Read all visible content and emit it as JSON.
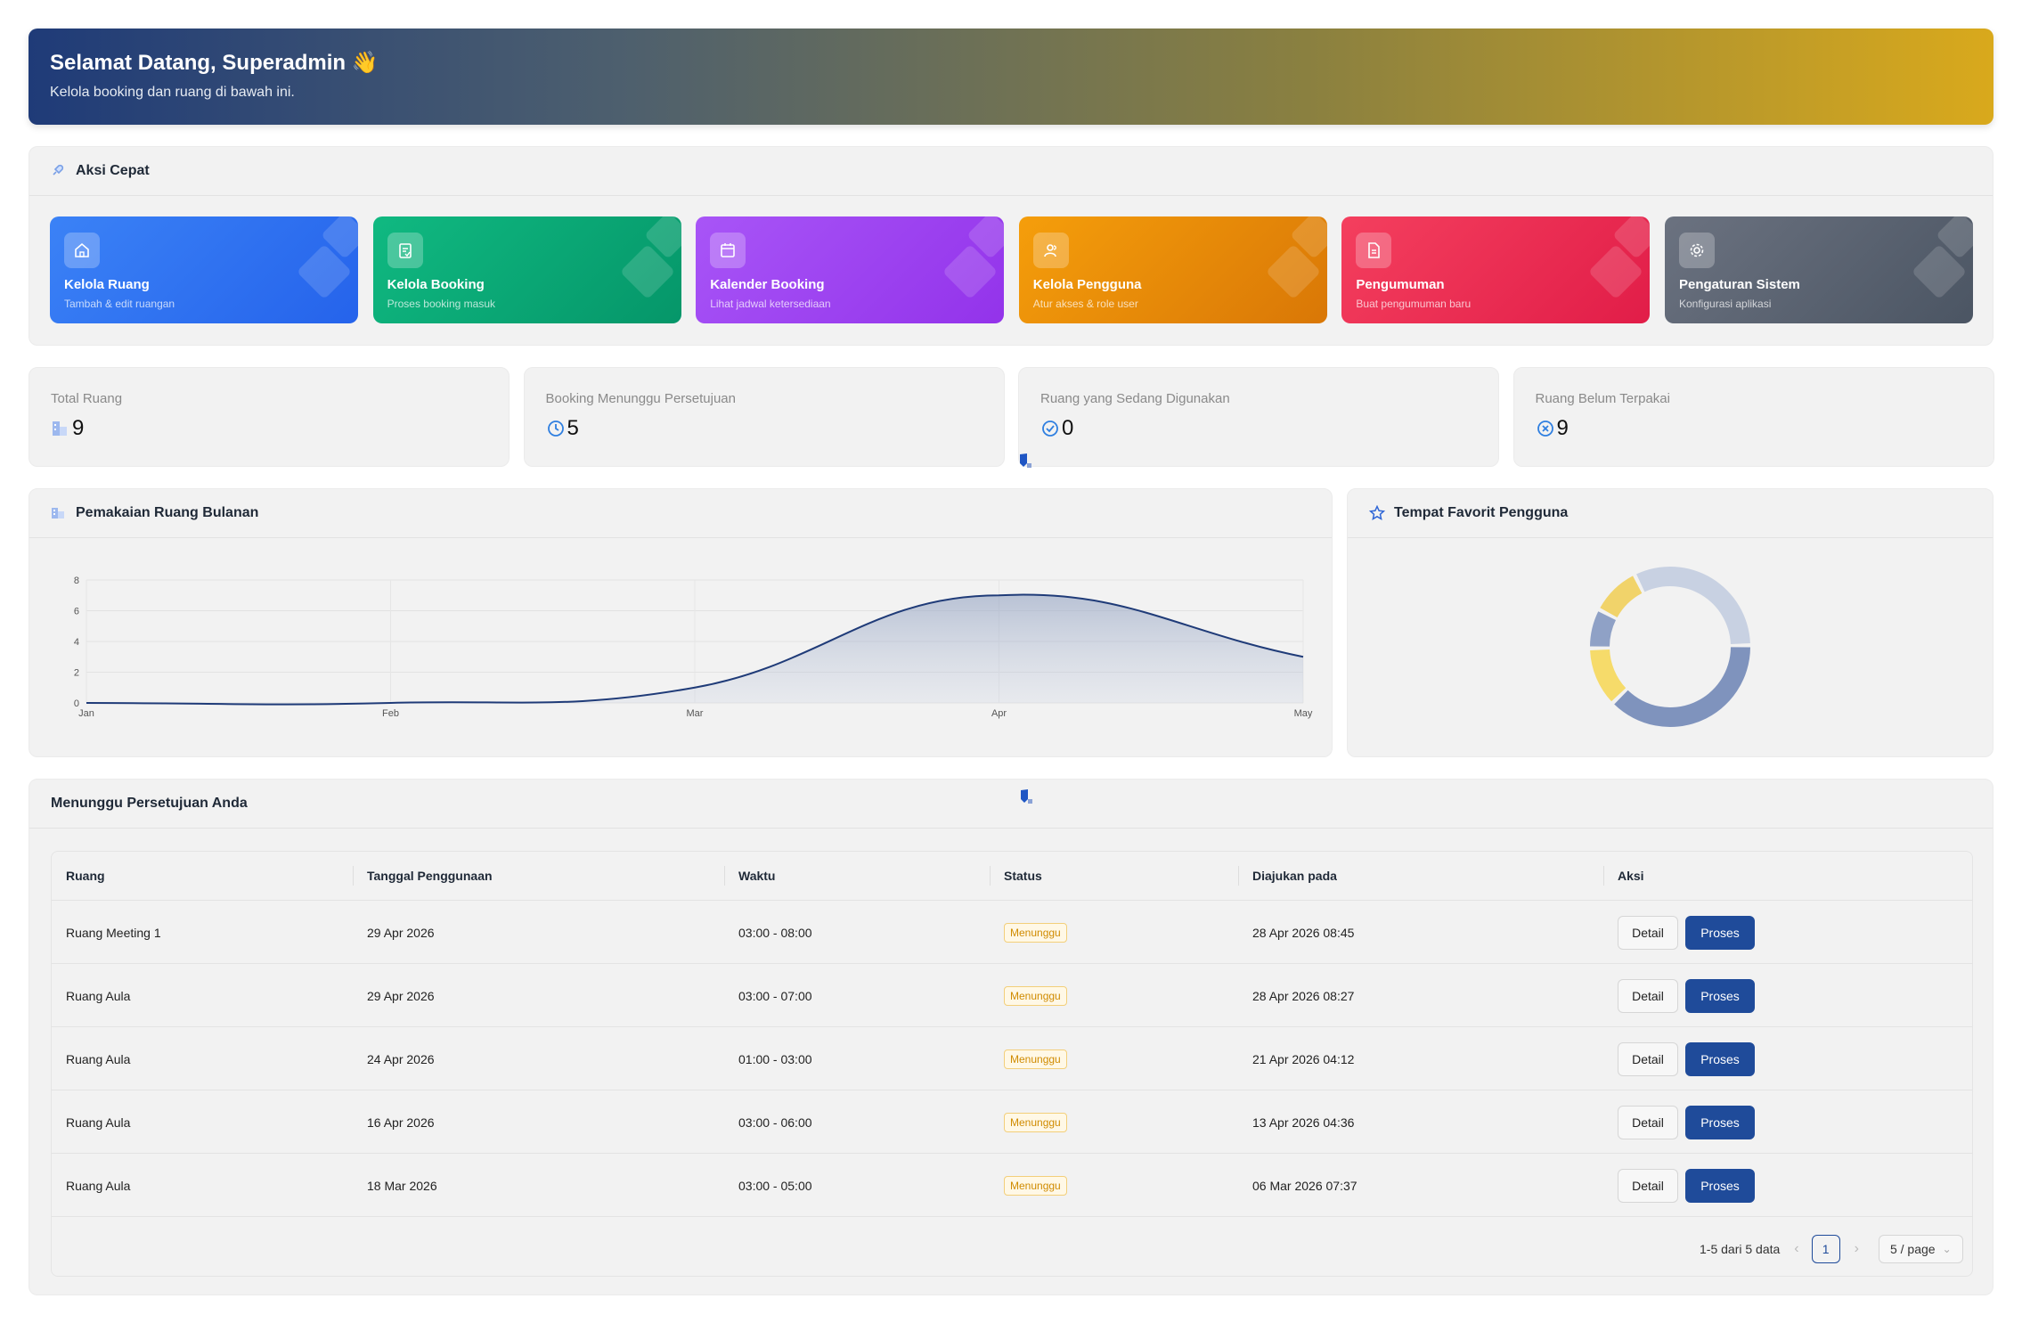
{
  "header": {
    "title": "Selamat Datang, Superadmin 👋",
    "subtitle": "Kelola booking dan ruang di bawah ini."
  },
  "quick_actions": {
    "title": "Aksi Cepat",
    "icon": "rocket-icon",
    "items": [
      {
        "title": "Kelola Ruang",
        "subtitle": "Tambah & edit ruangan",
        "icon": "home-icon",
        "color_from": "#3b82f6",
        "color_to": "#2563eb"
      },
      {
        "title": "Kelola Booking",
        "subtitle": "Proses booking masuk",
        "icon": "clipboard-icon",
        "color_from": "#10b981",
        "color_to": "#059669"
      },
      {
        "title": "Kalender Booking",
        "subtitle": "Lihat jadwal ketersediaan",
        "icon": "calendar-icon",
        "color_from": "#a855f7",
        "color_to": "#9333ea"
      },
      {
        "title": "Kelola Pengguna",
        "subtitle": "Atur akses & role user",
        "icon": "users-icon",
        "color_from": "#f59e0b",
        "color_to": "#d97706"
      },
      {
        "title": "Pengumuman",
        "subtitle": "Buat pengumuman baru",
        "icon": "document-icon",
        "color_from": "#f43f5e",
        "color_to": "#e11d48"
      },
      {
        "title": "Pengaturan Sistem",
        "subtitle": "Konfigurasi aplikasi",
        "icon": "gear-icon",
        "color_from": "#6b7280",
        "color_to": "#4b5563"
      }
    ]
  },
  "stats": [
    {
      "label": "Total Ruang",
      "value": "9",
      "icon": "building-icon"
    },
    {
      "label": "Booking Menunggu Persetujuan",
      "value": "5",
      "icon": "clock-icon"
    },
    {
      "label": "Ruang yang Sedang Digunakan",
      "value": "0",
      "icon": "check-circle-icon"
    },
    {
      "label": "Ruang Belum Terpakai",
      "value": "9",
      "icon": "x-circle-icon"
    }
  ],
  "usage_chart": {
    "title": "Pemakaian Ruang Bulanan",
    "icon": "building-icon"
  },
  "favorite_chart": {
    "title": "Tempat Favorit Pengguna",
    "icon": "star-icon"
  },
  "chart_data": [
    {
      "type": "area",
      "x": [
        "Jan",
        "Feb",
        "Mar",
        "Apr",
        "May"
      ],
      "values": [
        0,
        0,
        1,
        7,
        3
      ],
      "ylim": [
        0,
        8
      ],
      "yticks": [
        0,
        2,
        4,
        6,
        8
      ],
      "grid": true,
      "line_color": "#1f3b78"
    },
    {
      "type": "pie",
      "values": [
        38,
        12,
        8,
        10,
        32
      ],
      "colors": [
        "#7f93bd",
        "#f6db6a",
        "#8fa1c6",
        "#f1d36a",
        "#c8d1e2"
      ],
      "legend": false
    }
  ],
  "pending": {
    "title": "Menunggu Persetujuan Anda",
    "columns": [
      "Ruang",
      "Tanggal Penggunaan",
      "Waktu",
      "Status",
      "Diajukan pada",
      "Aksi"
    ],
    "rows": [
      {
        "ruang": "Ruang Meeting 1",
        "tanggal": "29 Apr 2026",
        "waktu": "03:00 - 08:00",
        "status": "Menunggu",
        "diajukan": "28 Apr 2026 08:45"
      },
      {
        "ruang": "Ruang Aula",
        "tanggal": "29 Apr 2026",
        "waktu": "03:00 - 07:00",
        "status": "Menunggu",
        "diajukan": "28 Apr 2026 08:27"
      },
      {
        "ruang": "Ruang Aula",
        "tanggal": "24 Apr 2026",
        "waktu": "01:00 - 03:00",
        "status": "Menunggu",
        "diajukan": "21 Apr 2026 04:12"
      },
      {
        "ruang": "Ruang Aula",
        "tanggal": "16 Apr 2026",
        "waktu": "03:00 - 06:00",
        "status": "Menunggu",
        "diajukan": "13 Apr 2026 04:36"
      },
      {
        "ruang": "Ruang Aula",
        "tanggal": "18 Mar 2026",
        "waktu": "03:00 - 05:00",
        "status": "Menunggu",
        "diajukan": "06 Mar 2026 07:37"
      }
    ],
    "detail_label": "Detail",
    "proses_label": "Proses",
    "pagination": {
      "summary": "1-5 dari 5 data",
      "current_page": "1",
      "page_size": "5 / page",
      "prev": "‹",
      "next": "›",
      "chevron": "⌄"
    }
  }
}
